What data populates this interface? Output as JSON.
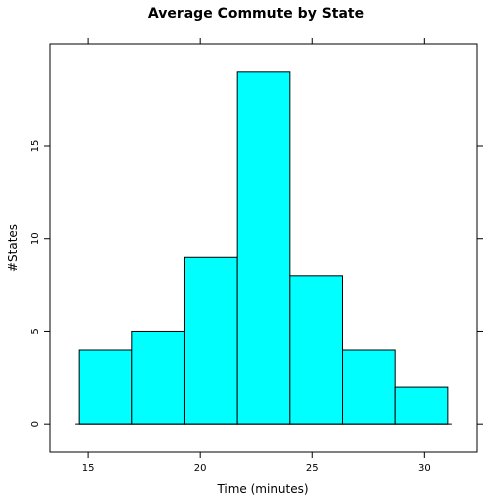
{
  "chart_data": {
    "type": "bar",
    "title": "Average Commute by State",
    "xlabel": "Time (minutes)",
    "ylabel": "#States",
    "bins": [
      {
        "from": 14.6,
        "to": 16.95,
        "count": 4
      },
      {
        "from": 16.95,
        "to": 19.3,
        "count": 5
      },
      {
        "from": 19.3,
        "to": 21.65,
        "count": 9
      },
      {
        "from": 21.65,
        "to": 24.0,
        "count": 19
      },
      {
        "from": 24.0,
        "to": 26.35,
        "count": 8
      },
      {
        "from": 26.35,
        "to": 28.7,
        "count": 4
      },
      {
        "from": 28.7,
        "to": 31.05,
        "count": 2
      }
    ],
    "values": [
      4,
      5,
      9,
      19,
      8,
      4,
      2
    ],
    "xticks": [
      15,
      20,
      25,
      30
    ],
    "yticks": [
      0,
      5,
      10,
      15
    ],
    "xlim": [
      13.3,
      32.35
    ],
    "ylim": [
      -1.5,
      20.5
    ],
    "bar_color": "#00ffff",
    "grid": false
  }
}
